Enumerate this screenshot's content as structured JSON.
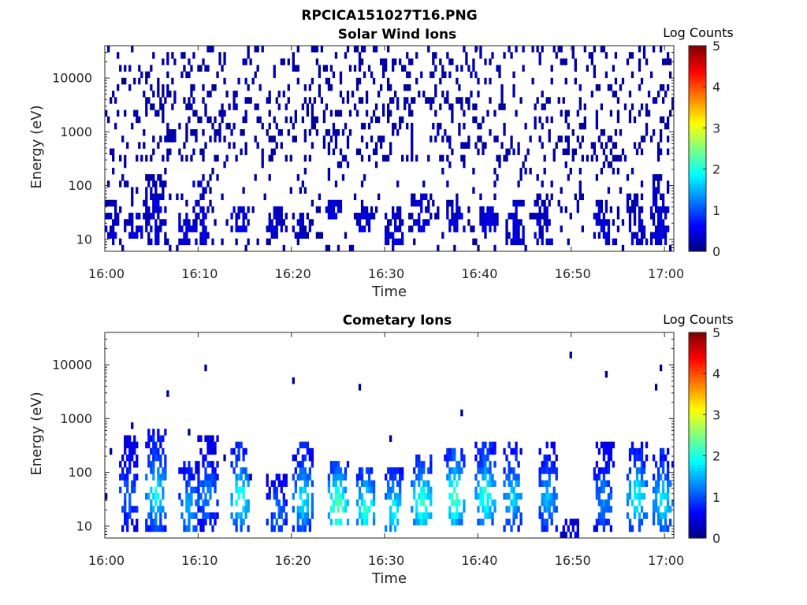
{
  "figure_title": "RPCICA151027T16.PNG",
  "chart_data": [
    {
      "type": "heatmap",
      "title": "Solar Wind Ions",
      "xlabel": "Time",
      "ylabel": "Energy (eV)",
      "x_ticks": [
        "16:00",
        "16:10",
        "16:20",
        "16:30",
        "16:40",
        "16:50",
        "17:00"
      ],
      "x_range_minutes": [
        0,
        61
      ],
      "y_ticks": [
        "10",
        "100",
        "1000",
        "10000"
      ],
      "y_scale": "log",
      "y_range": [
        6,
        40000
      ],
      "colorbar": {
        "label": "Log Counts",
        "ticks": [
          "0",
          "1",
          "2",
          "3",
          "4",
          "5"
        ],
        "range": [
          0,
          5
        ],
        "colormap": "jet"
      },
      "pattern": "sparse",
      "bursts": [
        {
          "t": 1.0,
          "e": [
            8,
            60
          ],
          "v": 0.2
        },
        {
          "t": 3.2,
          "e": [
            10,
            35
          ],
          "v": 0.3
        },
        {
          "t": 5.5,
          "e": [
            8,
            180
          ],
          "v": 0.3
        },
        {
          "t": 8.7,
          "e": [
            8,
            35
          ],
          "v": 0.3
        },
        {
          "t": 10.5,
          "e": [
            8,
            120
          ],
          "v": 0.3
        },
        {
          "t": 14.5,
          "e": [
            15,
            45
          ],
          "v": 0.4
        },
        {
          "t": 18.5,
          "e": [
            10,
            40
          ],
          "v": 0.3
        },
        {
          "t": 21.0,
          "e": [
            10,
            35
          ],
          "v": 0.2
        },
        {
          "t": 24.5,
          "e": [
            25,
            60
          ],
          "v": 0.4
        },
        {
          "t": 28.0,
          "e": [
            12,
            40
          ],
          "v": 0.3
        },
        {
          "t": 31.0,
          "e": [
            8,
            40
          ],
          "v": 0.3
        },
        {
          "t": 34.0,
          "e": [
            15,
            80
          ],
          "v": 0.4
        },
        {
          "t": 37.5,
          "e": [
            15,
            50
          ],
          "v": 0.3
        },
        {
          "t": 41.2,
          "e": [
            15,
            45
          ],
          "v": 0.4
        },
        {
          "t": 44.0,
          "e": [
            8,
            60
          ],
          "v": 0.3
        },
        {
          "t": 47.0,
          "e": [
            8,
            80
          ],
          "v": 0.3
        },
        {
          "t": 53.5,
          "e": [
            8,
            60
          ],
          "v": 0.3
        },
        {
          "t": 57.0,
          "e": [
            8,
            80
          ],
          "v": 0.3
        },
        {
          "t": 59.5,
          "e": [
            8,
            150
          ],
          "v": 0.3
        }
      ]
    },
    {
      "type": "heatmap",
      "title": "Cometary Ions",
      "xlabel": "Time",
      "ylabel": "Energy (eV)",
      "x_ticks": [
        "16:00",
        "16:10",
        "16:20",
        "16:30",
        "16:40",
        "16:50",
        "17:00"
      ],
      "x_range_minutes": [
        0,
        61
      ],
      "y_ticks": [
        "10",
        "100",
        "1000",
        "10000"
      ],
      "y_scale": "log",
      "y_range": [
        6,
        40000
      ],
      "colorbar": {
        "label": "Log Counts",
        "ticks": [
          "0",
          "1",
          "2",
          "3",
          "4",
          "5"
        ],
        "range": [
          0,
          5
        ],
        "colormap": "jet"
      },
      "pattern": "bursts",
      "bursts": [
        {
          "t": 2.5,
          "e": [
            8,
            450
          ],
          "v": 1.0
        },
        {
          "t": 5.5,
          "e": [
            8,
            600
          ],
          "v": 1.8
        },
        {
          "t": 9.0,
          "e": [
            8,
            150
          ],
          "v": 1.4
        },
        {
          "t": 11.0,
          "e": [
            8,
            500
          ],
          "v": 1.2
        },
        {
          "t": 14.5,
          "e": [
            8,
            400
          ],
          "v": 1.9
        },
        {
          "t": 18.5,
          "e": [
            8,
            100
          ],
          "v": 1.0
        },
        {
          "t": 21.3,
          "e": [
            8,
            350
          ],
          "v": 1.7
        },
        {
          "t": 25.0,
          "e": [
            10,
            150
          ],
          "v": 2.3
        },
        {
          "t": 28.0,
          "e": [
            10,
            120
          ],
          "v": 2.0
        },
        {
          "t": 31.0,
          "e": [
            8,
            120
          ],
          "v": 1.8
        },
        {
          "t": 34.0,
          "e": [
            10,
            200
          ],
          "v": 2.1
        },
        {
          "t": 37.5,
          "e": [
            10,
            300
          ],
          "v": 2.2
        },
        {
          "t": 40.8,
          "e": [
            10,
            350
          ],
          "v": 2.0
        },
        {
          "t": 43.7,
          "e": [
            8,
            400
          ],
          "v": 1.6
        },
        {
          "t": 47.5,
          "e": [
            8,
            400
          ],
          "v": 1.4
        },
        {
          "t": 50.0,
          "e": [
            6,
            15
          ],
          "v": 0.4
        },
        {
          "t": 53.5,
          "e": [
            8,
            350
          ],
          "v": 1.2
        },
        {
          "t": 57.0,
          "e": [
            8,
            400
          ],
          "v": 1.8
        },
        {
          "t": 59.8,
          "e": [
            8,
            300
          ],
          "v": 1.7
        }
      ]
    }
  ]
}
